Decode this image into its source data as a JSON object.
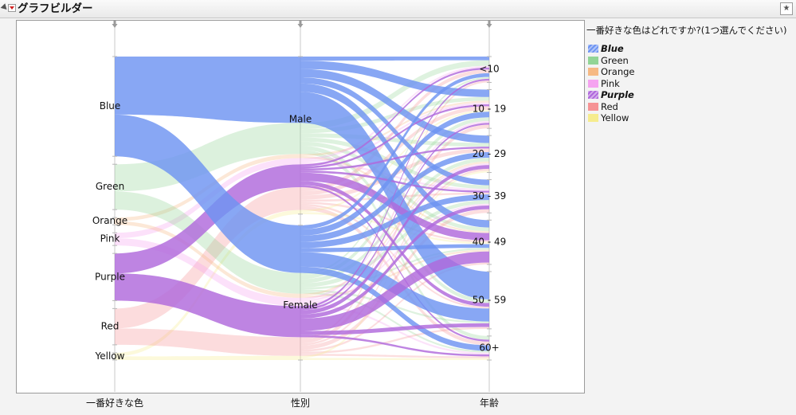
{
  "window": {
    "title": "グラフビルダー"
  },
  "colors": {
    "Blue": "#6e94f2",
    "Green": "#92d596",
    "Orange": "#f6b984",
    "Pink": "#f5a3f0",
    "Purple": "#b069dc",
    "Red": "#f69395",
    "Yellow": "#f6ec8e"
  },
  "legend": {
    "title": "一番好きな色はどれですか?(1つ選んでください)",
    "items": [
      {
        "label": "Blue",
        "color": "#6e94f2",
        "emphasized": true
      },
      {
        "label": "Green",
        "color": "#92d596",
        "emphasized": false
      },
      {
        "label": "Orange",
        "color": "#f6b984",
        "emphasized": false
      },
      {
        "label": "Pink",
        "color": "#f5a3f0",
        "emphasized": false
      },
      {
        "label": "Purple",
        "color": "#b069dc",
        "emphasized": true
      },
      {
        "label": "Red",
        "color": "#f69395",
        "emphasized": false
      },
      {
        "label": "Yellow",
        "color": "#f6ec8e",
        "emphasized": false
      }
    ]
  },
  "axes": {
    "x1_title": "一番好きな色",
    "x2_title": "性別",
    "x3_title": "年齢"
  },
  "chart_data": {
    "type": "parallel-sets",
    "axes": [
      {
        "title": "一番好きな色",
        "categories": [
          "Blue",
          "Green",
          "Orange",
          "Pink",
          "Purple",
          "Red",
          "Yellow"
        ]
      },
      {
        "title": "性別",
        "categories": [
          "Male",
          "Female"
        ]
      },
      {
        "title": "年齢",
        "categories": [
          "<10",
          "10 - 19",
          "20 - 29",
          "30 - 39",
          "40 - 49",
          "50 - 59",
          "60+"
        ]
      }
    ],
    "color_by": "一番好きな色",
    "emphasized": [
      "Blue",
      "Purple"
    ],
    "counts_color_gender": {
      "Blue": {
        "Male": 32,
        "Female": 23
      },
      "Green": {
        "Male": 15,
        "Female": 10
      },
      "Orange": {
        "Male": 2,
        "Female": 2
      },
      "Pink": {
        "Male": 3,
        "Female": 4
      },
      "Purple": {
        "Male": 11,
        "Female": 15
      },
      "Red": {
        "Male": 11,
        "Female": 9
      },
      "Yellow": {
        "Male": 2,
        "Female": 2
      }
    },
    "counts_gender_age": {
      "Blue": {
        "Male": {
          "<10": 2,
          "10 - 19": 4,
          "20 - 29": 4,
          "30 - 39": 3,
          "40 - 49": 4,
          "50 - 59": 15,
          "60+": 0
        },
        "Female": {
          "<10": 2,
          "10 - 19": 3,
          "20 - 29": 3,
          "30 - 39": 3,
          "40 - 49": 2,
          "50 - 59": 7,
          "60+": 3
        }
      },
      "Green": {
        "Male": {
          "<10": 3,
          "10 - 19": 2,
          "20 - 29": 2,
          "30 - 39": 2,
          "40 - 49": 2,
          "50 - 59": 2,
          "60+": 2
        },
        "Female": {
          "<10": 1,
          "10 - 19": 2,
          "20 - 29": 2,
          "30 - 39": 2,
          "40 - 49": 1,
          "50 - 59": 1,
          "60+": 1
        }
      },
      "Orange": {
        "Male": {
          "<10": 0,
          "10 - 19": 1,
          "20 - 29": 0,
          "30 - 39": 0,
          "40 - 49": 1,
          "50 - 59": 0,
          "60+": 0
        },
        "Female": {
          "<10": 0,
          "10 - 19": 0,
          "20 - 29": 1,
          "30 - 39": 0,
          "40 - 49": 1,
          "50 - 59": 0,
          "60+": 0
        }
      },
      "Pink": {
        "Male": {
          "<10": 1,
          "10 - 19": 1,
          "20 - 29": 0,
          "30 - 39": 1,
          "40 - 49": 0,
          "50 - 59": 0,
          "60+": 0
        },
        "Female": {
          "<10": 0,
          "10 - 19": 1,
          "20 - 29": 1,
          "30 - 39": 1,
          "40 - 49": 0,
          "50 - 59": 0,
          "60+": 1
        }
      },
      "Purple": {
        "Male": {
          "<10": 1,
          "10 - 19": 1,
          "20 - 29": 1,
          "30 - 39": 1,
          "40 - 49": 4,
          "50 - 59": 2,
          "60+": 1
        },
        "Female": {
          "<10": 1,
          "10 - 19": 1,
          "20 - 29": 2,
          "30 - 39": 2,
          "40 - 49": 6,
          "50 - 59": 2,
          "60+": 1
        }
      },
      "Red": {
        "Male": {
          "<10": 2,
          "10 - 19": 2,
          "20 - 29": 2,
          "30 - 39": 1,
          "40 - 49": 1,
          "50 - 59": 1,
          "60+": 2
        },
        "Female": {
          "<10": 1,
          "10 - 19": 2,
          "20 - 29": 1,
          "30 - 39": 2,
          "40 - 49": 1,
          "50 - 59": 1,
          "60+": 1
        }
      },
      "Yellow": {
        "Male": {
          "<10": 0,
          "10 - 19": 1,
          "20 - 29": 0,
          "30 - 39": 0,
          "40 - 49": 1,
          "50 - 59": 0,
          "60+": 0
        },
        "Female": {
          "<10": 0,
          "10 - 19": 0,
          "20 - 29": 1,
          "30 - 39": 0,
          "40 - 49": 0,
          "50 - 59": 0,
          "60+": 1
        }
      }
    }
  }
}
